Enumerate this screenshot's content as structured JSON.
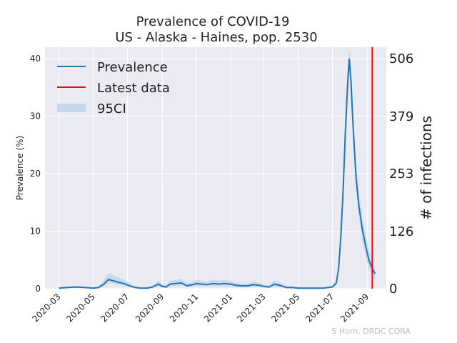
{
  "chart_data": {
    "type": "line",
    "title": "Prevalence of COVID-19",
    "subtitle": "US - Alaska - Haines, pop. 2530",
    "ylabel": "Prevalence (%)",
    "ylabel_right": "# of infections",
    "ylim": [
      0,
      42
    ],
    "xlim": [
      "2020-02-05",
      "2021-10-05"
    ],
    "grid": true,
    "legend_position": "top-left",
    "yticks": [
      0,
      10,
      20,
      30,
      40
    ],
    "yticks_right": [
      {
        "value": 0,
        "label": "0"
      },
      {
        "value": 9.96,
        "label": "126"
      },
      {
        "value": 19.98,
        "label": "253"
      },
      {
        "value": 29.96,
        "label": "379"
      },
      {
        "value": 40.0,
        "label": "506"
      }
    ],
    "xticks": [
      "2020-03",
      "2020-05",
      "2020-07",
      "2020-09",
      "2020-11",
      "2021-01",
      "2021-03",
      "2021-05",
      "2021-07",
      "2021-09"
    ],
    "latest_data": "2021-09-10",
    "series": [
      {
        "name": "Prevalence",
        "color": "#1f77b4",
        "x": [
          "2020-03-01",
          "2020-03-15",
          "2020-04-01",
          "2020-04-15",
          "2020-05-01",
          "2020-05-10",
          "2020-05-20",
          "2020-05-28",
          "2020-06-05",
          "2020-06-15",
          "2020-06-25",
          "2020-07-05",
          "2020-07-15",
          "2020-07-25",
          "2020-08-05",
          "2020-08-15",
          "2020-08-25",
          "2020-09-01",
          "2020-09-08",
          "2020-09-15",
          "2020-09-25",
          "2020-10-05",
          "2020-10-15",
          "2020-10-25",
          "2020-11-01",
          "2020-11-10",
          "2020-11-20",
          "2020-12-01",
          "2020-12-10",
          "2020-12-20",
          "2021-01-01",
          "2021-01-10",
          "2021-01-20",
          "2021-02-01",
          "2021-02-10",
          "2021-02-20",
          "2021-03-01",
          "2021-03-10",
          "2021-03-20",
          "2021-04-01",
          "2021-04-10",
          "2021-04-20",
          "2021-05-01",
          "2021-05-15",
          "2021-06-01",
          "2021-06-15",
          "2021-07-01",
          "2021-07-08",
          "2021-07-12",
          "2021-07-16",
          "2021-07-20",
          "2021-07-24",
          "2021-07-28",
          "2021-07-31",
          "2021-08-03",
          "2021-08-07",
          "2021-08-12",
          "2021-08-17",
          "2021-08-23",
          "2021-08-29",
          "2021-09-04",
          "2021-09-10",
          "2021-09-15"
        ],
        "values": [
          0.1,
          0.2,
          0.3,
          0.2,
          0.1,
          0.2,
          0.8,
          1.6,
          1.4,
          1.1,
          0.9,
          0.5,
          0.2,
          0.1,
          0.1,
          0.3,
          0.8,
          0.4,
          0.3,
          0.8,
          0.9,
          1.0,
          0.5,
          0.7,
          0.9,
          0.8,
          0.7,
          0.9,
          0.8,
          0.9,
          0.8,
          0.6,
          0.5,
          0.5,
          0.7,
          0.6,
          0.4,
          0.3,
          0.8,
          0.5,
          0.2,
          0.2,
          0.1,
          0.1,
          0.1,
          0.1,
          0.3,
          1.0,
          3.5,
          9.0,
          17.0,
          27.0,
          35.5,
          40.0,
          36.0,
          28.0,
          19.5,
          14.5,
          10.5,
          7.5,
          5.0,
          3.5,
          2.6
        ]
      }
    ],
    "ci": {
      "name": "95CI",
      "color": "#c7d7ec",
      "lower": [
        0.05,
        0.1,
        0.15,
        0.1,
        0.05,
        0.1,
        0.4,
        1.0,
        0.9,
        0.7,
        0.5,
        0.3,
        0.1,
        0.05,
        0.05,
        0.15,
        0.4,
        0.2,
        0.15,
        0.4,
        0.5,
        0.6,
        0.3,
        0.4,
        0.5,
        0.4,
        0.4,
        0.5,
        0.4,
        0.5,
        0.4,
        0.3,
        0.3,
        0.3,
        0.4,
        0.3,
        0.2,
        0.15,
        0.4,
        0.3,
        0.1,
        0.1,
        0.05,
        0.05,
        0.05,
        0.05,
        0.15,
        0.7,
        2.8,
        7.5,
        15.0,
        25.0,
        33.0,
        37.5,
        33.5,
        25.5,
        17.5,
        12.5,
        8.5,
        5.5,
        3.5,
        2.2,
        1.5
      ],
      "upper": [
        0.2,
        0.3,
        0.45,
        0.35,
        0.2,
        0.4,
        1.5,
        2.7,
        2.4,
        2.0,
        1.6,
        0.9,
        0.4,
        0.2,
        0.2,
        0.6,
        1.4,
        0.8,
        0.6,
        1.4,
        1.5,
        1.7,
        0.9,
        1.2,
        1.5,
        1.4,
        1.2,
        1.6,
        1.4,
        1.5,
        1.4,
        1.0,
        0.9,
        0.9,
        1.2,
        1.0,
        0.7,
        0.6,
        1.4,
        0.9,
        0.4,
        0.4,
        0.2,
        0.2,
        0.2,
        0.2,
        0.5,
        1.4,
        4.3,
        10.5,
        19.5,
        29.5,
        38.5,
        42.0,
        39.0,
        31.0,
        22.0,
        17.0,
        12.5,
        9.5,
        6.8,
        5.0,
        3.8
      ]
    },
    "legend": [
      {
        "label": "Prevalence",
        "kind": "line",
        "color": "#1f77b4"
      },
      {
        "label": "Latest data",
        "kind": "line",
        "color": "#ff0000"
      },
      {
        "label": "95CI",
        "kind": "patch",
        "color": "#c7d7ec"
      }
    ],
    "watermark": "S Horn, DRDC CORA"
  }
}
